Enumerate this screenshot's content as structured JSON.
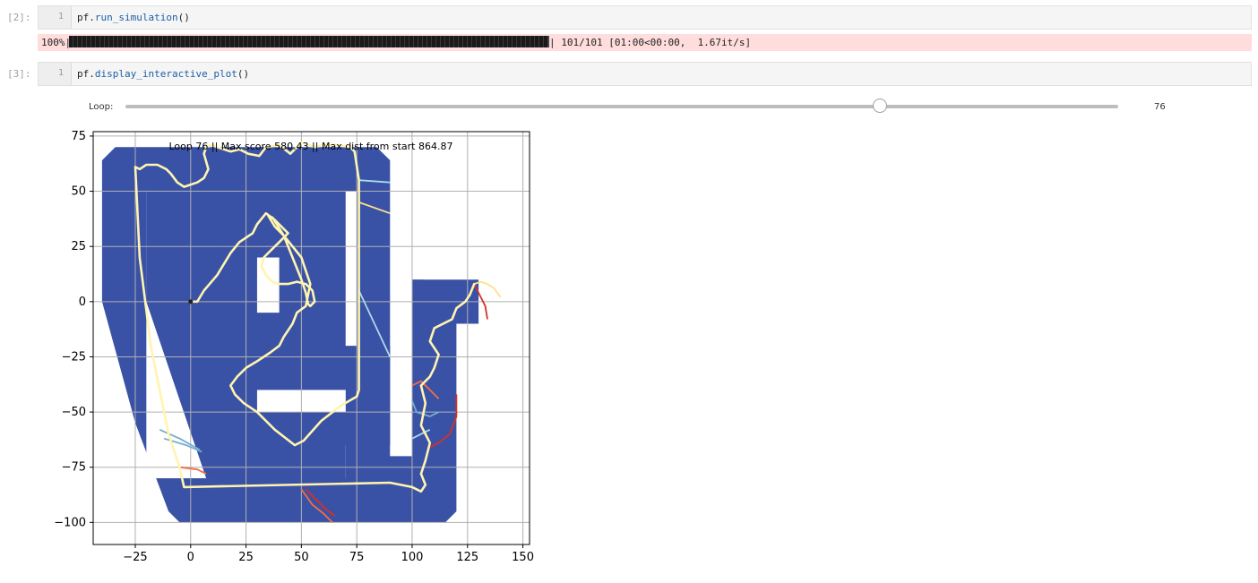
{
  "cells": [
    {
      "prompt": "[2]:",
      "line_number": "1",
      "code_obj": "pf.",
      "code_fn": "run_simulation",
      "code_tail": "()"
    },
    {
      "prompt": "[3]:",
      "line_number": "1",
      "code_obj": "pf.",
      "code_fn": "display_interactive_plot",
      "code_tail": "()"
    }
  ],
  "progress": {
    "percent_label": "100%|",
    "fraction": 1.0,
    "tail_label": "| 101/101 [01:00<00:00,  1.67it/s]"
  },
  "slider": {
    "label": "Loop:",
    "value": "76",
    "min": 0,
    "max": 100,
    "current": 76
  },
  "chart_data": {
    "type": "line",
    "title": "Loop 76 || Max score 580.43 || Max dist from start 864.87",
    "xlim": [
      -44,
      153
    ],
    "ylim": [
      -110,
      77
    ],
    "x_ticks": [
      -25,
      0,
      25,
      50,
      75,
      100,
      125,
      150
    ],
    "x_tick_labels": [
      "−25",
      "0",
      "25",
      "50",
      "75",
      "100",
      "125",
      "150"
    ],
    "y_ticks": [
      75,
      50,
      25,
      0,
      -25,
      -50,
      -75,
      -100
    ],
    "y_tick_labels": [
      "75",
      "50",
      "25",
      "0",
      "−25",
      "−50",
      "−75",
      "−100"
    ],
    "grid": true,
    "track_color": "#3a52a6",
    "best_path_color": "#fff4b0",
    "best_path": [
      [
        0,
        0
      ],
      [
        3,
        0
      ],
      [
        6,
        5
      ],
      [
        12,
        12
      ],
      [
        18,
        22
      ],
      [
        22,
        27
      ],
      [
        28,
        31
      ],
      [
        30,
        35
      ],
      [
        34,
        40
      ],
      [
        38,
        37
      ],
      [
        41,
        34
      ],
      [
        44,
        31
      ],
      [
        40,
        27
      ],
      [
        36,
        23
      ],
      [
        33,
        20
      ],
      [
        32,
        16
      ],
      [
        34,
        12
      ],
      [
        37,
        9
      ],
      [
        40,
        8
      ],
      [
        44,
        8
      ],
      [
        48,
        9
      ],
      [
        52,
        8
      ],
      [
        55,
        5
      ],
      [
        56,
        0
      ],
      [
        54,
        -2
      ],
      [
        53,
        -1
      ],
      [
        52,
        4
      ],
      [
        50,
        10
      ],
      [
        46,
        20
      ],
      [
        42,
        30
      ],
      [
        37,
        38
      ],
      [
        35,
        39
      ],
      [
        38,
        34
      ],
      [
        42,
        30
      ],
      [
        46,
        25
      ],
      [
        50,
        20
      ],
      [
        52,
        14
      ],
      [
        54,
        8
      ],
      [
        52,
        -2
      ],
      [
        48,
        -5
      ],
      [
        46,
        -10
      ],
      [
        42,
        -16
      ],
      [
        40,
        -20
      ],
      [
        36,
        -23
      ],
      [
        30,
        -27
      ],
      [
        25,
        -30
      ],
      [
        21,
        -34
      ],
      [
        18,
        -38
      ],
      [
        20,
        -42
      ],
      [
        24,
        -46
      ],
      [
        30,
        -50
      ],
      [
        38,
        -58
      ],
      [
        47,
        -65
      ],
      [
        51,
        -63
      ],
      [
        59,
        -54
      ],
      [
        68,
        -47
      ],
      [
        75,
        -43
      ],
      [
        76,
        -40
      ],
      [
        76,
        -20
      ],
      [
        76,
        0
      ],
      [
        76,
        20
      ],
      [
        76,
        40
      ],
      [
        76,
        55
      ],
      [
        74,
        68
      ],
      [
        72,
        70
      ],
      [
        66,
        71
      ],
      [
        60,
        71
      ],
      [
        56,
        70
      ],
      [
        50,
        72
      ],
      [
        45,
        67
      ],
      [
        40,
        71
      ],
      [
        34,
        70
      ],
      [
        31,
        66
      ],
      [
        26,
        67
      ],
      [
        22,
        69
      ],
      [
        18,
        68
      ],
      [
        12,
        70
      ],
      [
        10,
        71
      ],
      [
        7,
        70
      ],
      [
        6,
        67
      ],
      [
        8,
        60
      ],
      [
        6,
        56
      ],
      [
        3,
        54
      ],
      [
        -3,
        52
      ],
      [
        -6,
        54
      ],
      [
        -9,
        58
      ],
      [
        -11,
        60
      ],
      [
        -15,
        62
      ],
      [
        -20,
        62
      ],
      [
        -23,
        60
      ],
      [
        -25,
        61
      ],
      [
        -23,
        20
      ],
      [
        -18,
        -20
      ],
      [
        -14,
        -40
      ],
      [
        -10,
        -60
      ],
      [
        -5,
        -75
      ],
      [
        -3,
        -84
      ],
      [
        90,
        -82
      ],
      [
        100,
        -84
      ],
      [
        104,
        -86
      ],
      [
        106,
        -83
      ],
      [
        104,
        -78
      ],
      [
        106,
        -72
      ],
      [
        108,
        -64
      ],
      [
        104,
        -56
      ],
      [
        106,
        -46
      ],
      [
        104,
        -38
      ],
      [
        108,
        -34
      ],
      [
        110,
        -30
      ],
      [
        112,
        -24
      ],
      [
        108,
        -18
      ],
      [
        110,
        -12
      ],
      [
        118,
        -8
      ],
      [
        120,
        -3
      ],
      [
        124,
        0
      ],
      [
        126,
        3
      ],
      [
        128,
        8
      ]
    ],
    "side_paths": [
      {
        "color": "#d73027",
        "points": [
          [
            128,
            8
          ],
          [
            131,
            2
          ],
          [
            133,
            -2
          ],
          [
            134,
            -8
          ]
        ]
      },
      {
        "color": "#fee08b",
        "points": [
          [
            128,
            8
          ],
          [
            131,
            9
          ],
          [
            134,
            8
          ],
          [
            137,
            6
          ],
          [
            140,
            2
          ]
        ]
      },
      {
        "color": "#f46d43",
        "points": [
          [
            50,
            -85
          ],
          [
            55,
            -92
          ],
          [
            60,
            -96
          ],
          [
            64,
            -100
          ]
        ]
      },
      {
        "color": "#d73027",
        "points": [
          [
            52,
            -85
          ],
          [
            57,
            -90
          ],
          [
            61,
            -94
          ],
          [
            65,
            -97
          ]
        ]
      },
      {
        "color": "#abd9e9",
        "points": [
          [
            76,
            55
          ],
          [
            90,
            54
          ]
        ]
      },
      {
        "color": "#fee08b",
        "points": [
          [
            76,
            45
          ],
          [
            90,
            40
          ]
        ]
      },
      {
        "color": "#abd9e9",
        "points": [
          [
            76,
            5
          ],
          [
            90,
            -25
          ]
        ]
      },
      {
        "color": "#74add1",
        "points": [
          [
            -14,
            -58
          ],
          [
            -5,
            -62
          ],
          [
            4,
            -67
          ]
        ]
      },
      {
        "color": "#74add1",
        "points": [
          [
            -12,
            -62
          ],
          [
            -2,
            -65
          ],
          [
            5,
            -68
          ]
        ]
      },
      {
        "color": "#f46d43",
        "points": [
          [
            -5,
            -75
          ],
          [
            3,
            -76
          ],
          [
            7,
            -78
          ]
        ]
      },
      {
        "color": "#f46d43",
        "points": [
          [
            100,
            -38
          ],
          [
            104,
            -36
          ],
          [
            108,
            -40
          ],
          [
            112,
            -44
          ]
        ]
      },
      {
        "color": "#74add1",
        "points": [
          [
            100,
            -45
          ],
          [
            102,
            -50
          ],
          [
            108,
            -52
          ],
          [
            112,
            -50
          ]
        ]
      },
      {
        "color": "#d73027",
        "points": [
          [
            120,
            -42
          ],
          [
            120,
            -52
          ],
          [
            117,
            -60
          ],
          [
            112,
            -64
          ],
          [
            108,
            -66
          ]
        ]
      },
      {
        "color": "#abd9e9",
        "points": [
          [
            100,
            -62
          ],
          [
            104,
            -60
          ],
          [
            108,
            -58
          ]
        ]
      }
    ]
  }
}
